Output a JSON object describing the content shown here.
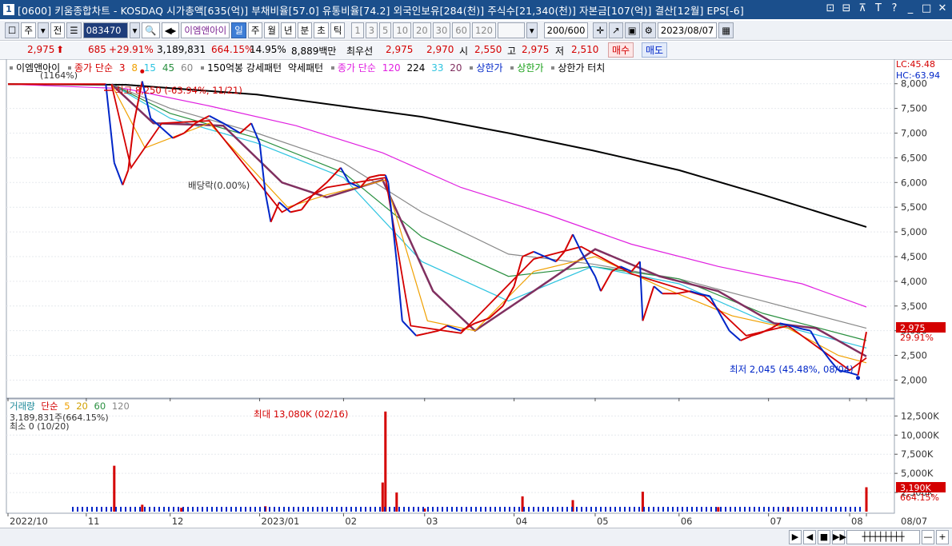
{
  "window": {
    "num": "1",
    "title": "[0600] 키움종합차트 - KOSDAQ 시가총액[635(억)] 부채비율[57.0] 유통비율[74.2] 외국인보유[284(천)] 주식수[21,340(천)] 자본금[107(억)] 결산[12월] EPS[-6]",
    "buttons": [
      "⊡",
      "⊟",
      "⊼",
      "T",
      "?",
      "_",
      "□",
      "✕"
    ]
  },
  "toolbar": {
    "period_select": "주",
    "prev_label": "전",
    "code": "083470",
    "stock_name": "이엠앤아이",
    "chart_types": [
      "일",
      "주",
      "월",
      "년",
      "분",
      "초",
      "틱"
    ],
    "selected_type": "일",
    "intervals": [
      "1",
      "3",
      "5",
      "10",
      "20",
      "30",
      "60",
      "120"
    ],
    "count": "200/600",
    "date": "2023/08/07"
  },
  "info": {
    "price": "2,975",
    "arrow": "⬆",
    "change": "685",
    "change_pct": "+29.91%",
    "volume": "3,189,831",
    "vol_pct": "664.15%",
    "turnover": "14.95%",
    "amount": "8,889백만",
    "flag": "최우선",
    "bid": "2,975",
    "ask": "2,970",
    "open_label": "시",
    "open": "2,550",
    "high_label": "고",
    "high": "2,975",
    "low_label": "저",
    "low": "2,510",
    "buy": "매수",
    "sell": "매도"
  },
  "legend": {
    "name": "이엠앤아이",
    "ma_label": "종가 단순",
    "ma_periods": [
      "3",
      "8",
      "15",
      "45",
      "60"
    ],
    "pattern": "150억봉 강세패턴",
    "weak": "약세패턴",
    "long_ma_label": "종가 단순",
    "long_ma_periods": [
      "120",
      "224",
      "33",
      "20"
    ],
    "upper1": "상한가",
    "upper2": "상한가",
    "upper_touch": "상한가 터치",
    "lc": "LC:45.48",
    "hc": "HC:-63.94"
  },
  "annotations": {
    "high_text": "최고 8,250 (-63.94%, 11/21)",
    "low_text": "최저 2,045 (45.48%, 08/04)",
    "dividend": "배당락(0.00%)",
    "top_left": "(1164%)",
    "vol_max": "최대 13,080K (02/16)",
    "vol_now": "3,189,831주(664.15%)",
    "vol_min": "최소 0 (10/20)",
    "price_tag": "2,975",
    "price_tag_pct": "29.91%",
    "vol_tag": "3,190K",
    "vol_tag_pct": "664.15%"
  },
  "volume_legend": {
    "label": "거래량",
    "ma": "단순",
    "periods": [
      "5",
      "20",
      "60",
      "120"
    ]
  },
  "colors": {
    "up": "#d40000",
    "down": "#0026c8",
    "ma3": "#d40000",
    "ma8": "#f0a000",
    "ma15": "#2ec4e0",
    "ma45": "#2a9040",
    "ma60": "#888888",
    "ma20": "#803060",
    "ma120": "#e020e0",
    "ma224": "#000000"
  },
  "chart_data": [
    {
      "type": "candlestick",
      "title": "이엠앤아이",
      "ylim": [
        1700,
        8400
      ],
      "y_ticks": [
        2000,
        2500,
        3000,
        3500,
        4000,
        4500,
        5000,
        5500,
        6000,
        6500,
        7000,
        7500,
        8000
      ],
      "y_tick_labels": [
        "2,000",
        "2,500",
        "3,000",
        "3,500",
        "4,000",
        "4,500",
        "5,000",
        "5,500",
        "6,000",
        "6,500",
        "7,000",
        "7,500",
        "8,000"
      ],
      "x_labels": [
        "2022/10",
        "11",
        "12",
        "2023/01",
        "02",
        "03",
        "04",
        "05",
        "06",
        "07",
        "08",
        "08/07"
      ],
      "x_label_dates": [
        "2022-10-04",
        "2022-11-01",
        "2022-12-01",
        "2023-01-02",
        "2023-02-01",
        "2023-03-02",
        "2023-04-03",
        "2023-05-02",
        "2023-06-01",
        "2023-07-03",
        "2023-08-01",
        "2023-08-07"
      ],
      "close_path": [
        {
          "x": "2022-10-04",
          "y": 7990
        },
        {
          "x": "2022-11-08",
          "y": 7990
        },
        {
          "x": "2022-11-11",
          "y": 6400
        },
        {
          "x": "2022-11-14",
          "y": 5950
        },
        {
          "x": "2022-11-16",
          "y": 6250
        },
        {
          "x": "2022-11-18",
          "y": 7200
        },
        {
          "x": "2022-11-21",
          "y": 8050
        },
        {
          "x": "2022-11-24",
          "y": 7300
        },
        {
          "x": "2022-11-28",
          "y": 7100
        },
        {
          "x": "2022-12-02",
          "y": 6900
        },
        {
          "x": "2022-12-06",
          "y": 7000
        },
        {
          "x": "2022-12-10",
          "y": 7200
        },
        {
          "x": "2022-12-15",
          "y": 7350
        },
        {
          "x": "2022-12-20",
          "y": 7200
        },
        {
          "x": "2022-12-26",
          "y": 7000
        },
        {
          "x": "2022-12-30",
          "y": 7200
        },
        {
          "x": "2023-01-02",
          "y": 6800
        },
        {
          "x": "2023-01-04",
          "y": 5800
        },
        {
          "x": "2023-01-06",
          "y": 5200
        },
        {
          "x": "2023-01-09",
          "y": 5600
        },
        {
          "x": "2023-01-13",
          "y": 5400
        },
        {
          "x": "2023-01-17",
          "y": 5450
        },
        {
          "x": "2023-01-21",
          "y": 5750
        },
        {
          "x": "2023-01-26",
          "y": 6000
        },
        {
          "x": "2023-01-31",
          "y": 6300
        },
        {
          "x": "2023-02-03",
          "y": 6000
        },
        {
          "x": "2023-02-07",
          "y": 5900
        },
        {
          "x": "2023-02-10",
          "y": 6100
        },
        {
          "x": "2023-02-14",
          "y": 6150
        },
        {
          "x": "2023-02-16",
          "y": 6150
        },
        {
          "x": "2023-02-17",
          "y": 6000
        },
        {
          "x": "2023-02-20",
          "y": 4400
        },
        {
          "x": "2023-02-22",
          "y": 3200
        },
        {
          "x": "2023-02-27",
          "y": 2900
        },
        {
          "x": "2023-03-03",
          "y": 2950
        },
        {
          "x": "2023-03-07",
          "y": 3000
        },
        {
          "x": "2023-03-10",
          "y": 3100
        },
        {
          "x": "2023-03-15",
          "y": 3000
        },
        {
          "x": "2023-03-20",
          "y": 3150
        },
        {
          "x": "2023-03-25",
          "y": 3250
        },
        {
          "x": "2023-03-30",
          "y": 3500
        },
        {
          "x": "2023-04-03",
          "y": 3900
        },
        {
          "x": "2023-04-06",
          "y": 4500
        },
        {
          "x": "2023-04-10",
          "y": 4600
        },
        {
          "x": "2023-04-14",
          "y": 4500
        },
        {
          "x": "2023-04-18",
          "y": 4400
        },
        {
          "x": "2023-04-21",
          "y": 4600
        },
        {
          "x": "2023-04-24",
          "y": 4950
        },
        {
          "x": "2023-04-27",
          "y": 4600
        },
        {
          "x": "2023-05-02",
          "y": 4100
        },
        {
          "x": "2023-05-04",
          "y": 3800
        },
        {
          "x": "2023-05-08",
          "y": 4200
        },
        {
          "x": "2023-05-11",
          "y": 4300
        },
        {
          "x": "2023-05-15",
          "y": 4200
        },
        {
          "x": "2023-05-18",
          "y": 4400
        },
        {
          "x": "2023-05-19",
          "y": 3200
        },
        {
          "x": "2023-05-23",
          "y": 3900
        },
        {
          "x": "2023-05-26",
          "y": 3750
        },
        {
          "x": "2023-05-31",
          "y": 3750
        },
        {
          "x": "2023-06-05",
          "y": 3800
        },
        {
          "x": "2023-06-08",
          "y": 3750
        },
        {
          "x": "2023-06-12",
          "y": 3700
        },
        {
          "x": "2023-06-15",
          "y": 3400
        },
        {
          "x": "2023-06-19",
          "y": 3000
        },
        {
          "x": "2023-06-23",
          "y": 2800
        },
        {
          "x": "2023-06-27",
          "y": 2900
        },
        {
          "x": "2023-06-30",
          "y": 2950
        },
        {
          "x": "2023-07-04",
          "y": 3050
        },
        {
          "x": "2023-07-07",
          "y": 3150
        },
        {
          "x": "2023-07-11",
          "y": 3100
        },
        {
          "x": "2023-07-14",
          "y": 3050
        },
        {
          "x": "2023-07-18",
          "y": 3000
        },
        {
          "x": "2023-07-21",
          "y": 2700
        },
        {
          "x": "2023-07-25",
          "y": 2400
        },
        {
          "x": "2023-07-28",
          "y": 2200
        },
        {
          "x": "2023-08-01",
          "y": 2150
        },
        {
          "x": "2023-08-04",
          "y": 2100
        },
        {
          "x": "2023-08-07",
          "y": 2975
        }
      ],
      "ma_lines": [
        {
          "name": "224",
          "values": [
            {
              "x": "2022-10-04",
              "y": 7990
            },
            {
              "x": "2022-11-15",
              "y": 7980
            },
            {
              "x": "2023-01-01",
              "y": 7780
            },
            {
              "x": "2023-03-01",
              "y": 7330
            },
            {
              "x": "2023-04-01",
              "y": 7000
            },
            {
              "x": "2023-05-01",
              "y": 6650
            },
            {
              "x": "2023-06-01",
              "y": 6250
            },
            {
              "x": "2023-07-01",
              "y": 5750
            },
            {
              "x": "2023-08-07",
              "y": 5100
            }
          ]
        },
        {
          "name": "120",
          "values": [
            {
              "x": "2022-10-04",
              "y": 7990
            },
            {
              "x": "2022-11-15",
              "y": 7900
            },
            {
              "x": "2022-12-15",
              "y": 7550
            },
            {
              "x": "2023-01-15",
              "y": 7150
            },
            {
              "x": "2023-02-15",
              "y": 6600
            },
            {
              "x": "2023-03-15",
              "y": 5900
            },
            {
              "x": "2023-04-15",
              "y": 5350
            },
            {
              "x": "2023-05-15",
              "y": 4750
            },
            {
              "x": "2023-06-15",
              "y": 4300
            },
            {
              "x": "2023-07-15",
              "y": 3950
            },
            {
              "x": "2023-08-07",
              "y": 3480
            }
          ]
        },
        {
          "name": "60",
          "values": [
            {
              "x": "2022-11-10",
              "y": 7990
            },
            {
              "x": "2022-12-01",
              "y": 7500
            },
            {
              "x": "2023-01-01",
              "y": 7000
            },
            {
              "x": "2023-02-01",
              "y": 6400
            },
            {
              "x": "2023-03-01",
              "y": 5400
            },
            {
              "x": "2023-04-01",
              "y": 4550
            },
            {
              "x": "2023-05-01",
              "y": 4350
            },
            {
              "x": "2023-06-01",
              "y": 4050
            },
            {
              "x": "2023-07-01",
              "y": 3600
            },
            {
              "x": "2023-08-07",
              "y": 3050
            }
          ]
        },
        {
          "name": "45",
          "values": [
            {
              "x": "2022-11-10",
              "y": 7990
            },
            {
              "x": "2022-12-01",
              "y": 7400
            },
            {
              "x": "2023-01-01",
              "y": 6900
            },
            {
              "x": "2023-02-01",
              "y": 6200
            },
            {
              "x": "2023-03-01",
              "y": 4900
            },
            {
              "x": "2023-04-01",
              "y": 4100
            },
            {
              "x": "2023-05-01",
              "y": 4300
            },
            {
              "x": "2023-06-01",
              "y": 4050
            },
            {
              "x": "2023-07-01",
              "y": 3350
            },
            {
              "x": "2023-08-07",
              "y": 2800
            }
          ]
        },
        {
          "name": "33",
          "values": [
            {
              "x": "2022-11-10",
              "y": 7990
            },
            {
              "x": "2022-12-01",
              "y": 7300
            },
            {
              "x": "2023-01-01",
              "y": 6800
            },
            {
              "x": "2023-02-01",
              "y": 6100
            },
            {
              "x": "2023-03-01",
              "y": 4400
            },
            {
              "x": "2023-04-01",
              "y": 3600
            },
            {
              "x": "2023-05-01",
              "y": 4300
            },
            {
              "x": "2023-06-01",
              "y": 3950
            },
            {
              "x": "2023-07-01",
              "y": 3200
            },
            {
              "x": "2023-08-07",
              "y": 2650
            }
          ]
        },
        {
          "name": "20",
          "values": [
            {
              "x": "2022-11-10",
              "y": 7990
            },
            {
              "x": "2022-11-25",
              "y": 7200
            },
            {
              "x": "2022-12-20",
              "y": 7150
            },
            {
              "x": "2023-01-10",
              "y": 6000
            },
            {
              "x": "2023-01-26",
              "y": 5700
            },
            {
              "x": "2023-02-15",
              "y": 6050
            },
            {
              "x": "2023-03-05",
              "y": 3800
            },
            {
              "x": "2023-03-20",
              "y": 3000
            },
            {
              "x": "2023-04-10",
              "y": 3800
            },
            {
              "x": "2023-05-02",
              "y": 4650
            },
            {
              "x": "2023-05-25",
              "y": 4100
            },
            {
              "x": "2023-06-15",
              "y": 3800
            },
            {
              "x": "2023-07-05",
              "y": 3150
            },
            {
              "x": "2023-07-20",
              "y": 3050
            },
            {
              "x": "2023-08-07",
              "y": 2480
            }
          ]
        },
        {
          "name": "15",
          "values": [
            {
              "x": "2022-11-10",
              "y": 7990
            },
            {
              "x": "2022-11-22",
              "y": 6700
            },
            {
              "x": "2022-12-15",
              "y": 7200
            },
            {
              "x": "2023-01-12",
              "y": 5500
            },
            {
              "x": "2023-01-26",
              "y": 5750
            },
            {
              "x": "2023-02-16",
              "y": 6050
            },
            {
              "x": "2023-03-03",
              "y": 3200
            },
            {
              "x": "2023-03-20",
              "y": 3000
            },
            {
              "x": "2023-04-10",
              "y": 4200
            },
            {
              "x": "2023-05-02",
              "y": 4500
            },
            {
              "x": "2023-05-25",
              "y": 3900
            },
            {
              "x": "2023-06-20",
              "y": 3300
            },
            {
              "x": "2023-07-10",
              "y": 3050
            },
            {
              "x": "2023-07-28",
              "y": 2500
            },
            {
              "x": "2023-08-07",
              "y": 2350
            }
          ]
        },
        {
          "name": "8",
          "values": [
            {
              "x": "2022-11-10",
              "y": 7990
            },
            {
              "x": "2022-11-17",
              "y": 6300
            },
            {
              "x": "2022-11-28",
              "y": 7200
            },
            {
              "x": "2022-12-15",
              "y": 7250
            },
            {
              "x": "2023-01-10",
              "y": 5400
            },
            {
              "x": "2023-01-26",
              "y": 5900
            },
            {
              "x": "2023-02-16",
              "y": 6100
            },
            {
              "x": "2023-02-25",
              "y": 3100
            },
            {
              "x": "2023-03-15",
              "y": 2950
            },
            {
              "x": "2023-04-10",
              "y": 4450
            },
            {
              "x": "2023-04-27",
              "y": 4700
            },
            {
              "x": "2023-05-15",
              "y": 4150
            },
            {
              "x": "2023-06-10",
              "y": 3700
            },
            {
              "x": "2023-06-25",
              "y": 2900
            },
            {
              "x": "2023-07-10",
              "y": 3100
            },
            {
              "x": "2023-08-01",
              "y": 2200
            },
            {
              "x": "2023-08-07",
              "y": 2450
            }
          ]
        }
      ],
      "highlights": [
        {
          "label": "최고",
          "x": "2022-11-21",
          "y": 8250
        },
        {
          "label": "최저",
          "x": "2023-08-04",
          "y": 2045
        }
      ]
    },
    {
      "type": "bar",
      "title": "거래량",
      "ylim": [
        0,
        14000
      ],
      "y_ticks": [
        2500,
        5000,
        7500,
        10000,
        12500
      ],
      "y_tick_labels": [
        "2,500K",
        "5,000K",
        "7,500K",
        "10,000K",
        "12,500K"
      ],
      "values_k": [
        {
          "x": "2022-11-11",
          "y": 6000
        },
        {
          "x": "2022-11-21",
          "y": 900
        },
        {
          "x": "2022-12-05",
          "y": 500
        },
        {
          "x": "2023-01-04",
          "y": 700
        },
        {
          "x": "2023-02-15",
          "y": 3800
        },
        {
          "x": "2023-02-16",
          "y": 13080
        },
        {
          "x": "2023-02-20",
          "y": 2500
        },
        {
          "x": "2023-03-02",
          "y": 400
        },
        {
          "x": "2023-04-06",
          "y": 2000
        },
        {
          "x": "2023-04-24",
          "y": 1500
        },
        {
          "x": "2023-05-19",
          "y": 2600
        },
        {
          "x": "2023-06-15",
          "y": 600
        },
        {
          "x": "2023-07-10",
          "y": 600
        },
        {
          "x": "2023-08-07",
          "y": 3190
        }
      ]
    }
  ],
  "bottom": {
    "nav": [
      "▶",
      "◀",
      "■",
      "▶▶",
      "—",
      "+"
    ]
  }
}
